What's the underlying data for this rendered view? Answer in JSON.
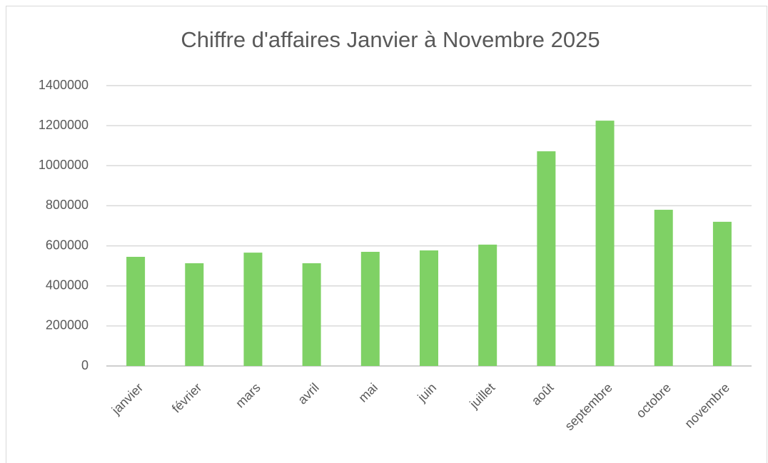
{
  "chart_data": {
    "type": "bar",
    "title": "Chiffre d'affaires  Janvier à Novembre 2025",
    "categories": [
      "janvier",
      "février",
      "mars",
      "avril",
      "mai",
      "juin",
      "juillet",
      "août",
      "septembre",
      "octobre",
      "novembre"
    ],
    "values": [
      545000,
      513000,
      566000,
      513000,
      570000,
      577000,
      606000,
      1072000,
      1225000,
      780000,
      720000
    ],
    "color": "#7fd165",
    "ylim": [
      0,
      1400000
    ],
    "yticks": [
      0,
      200000,
      400000,
      600000,
      800000,
      1000000,
      1200000,
      1400000
    ],
    "grid": true
  }
}
